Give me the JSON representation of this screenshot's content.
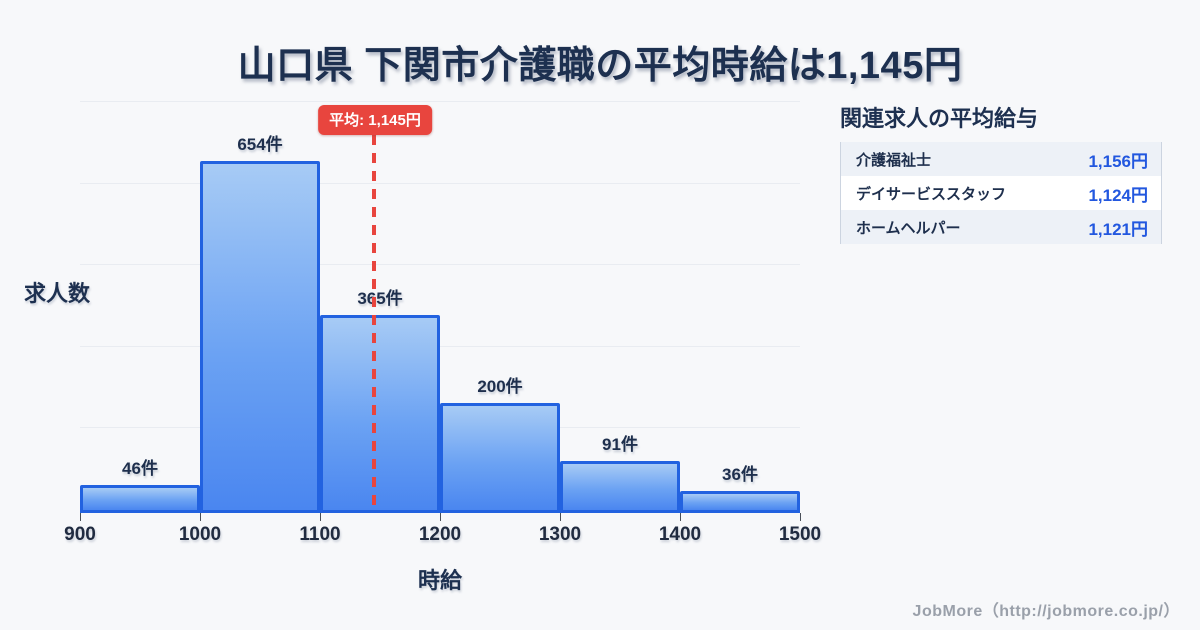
{
  "title": "山口県 下関市介護職の平均時給は1,145円",
  "chart_data": {
    "type": "bar",
    "subtype": "histogram",
    "title": "山口県 下関市介護職の平均時給は1,145円",
    "xlabel": "時給",
    "ylabel": "求人数",
    "bins": [
      900,
      1000,
      1100,
      1200,
      1300,
      1400,
      1500
    ],
    "categories": [
      "900-1000",
      "1000-1100",
      "1100-1200",
      "1200-1300",
      "1300-1400",
      "1400-1500"
    ],
    "values": [
      46,
      654,
      365,
      200,
      91,
      36
    ],
    "bar_labels": [
      "46件",
      "654件",
      "365件",
      "200件",
      "91件",
      "36件"
    ],
    "x_tick_labels": [
      "900",
      "1000",
      "1100",
      "1200",
      "1300",
      "1400",
      "1500"
    ],
    "mean_value": 1145,
    "mean_label": "平均: 1,145円",
    "xlim": [
      900,
      1500
    ],
    "ylim": [
      0,
      765
    ],
    "gridline_count": 5,
    "grid": true,
    "legend": "none",
    "colors": {
      "bar_fill_top": "#a7cbf5",
      "bar_fill_bottom": "#4a86f0",
      "bar_border": "#2262e0",
      "mean_line": "#e8453e",
      "label_text": "#1e2f4d",
      "background": "#f7f8fa"
    }
  },
  "side_panel": {
    "heading": "関連求人の平均給与",
    "rows": [
      {
        "label": "介護福祉士",
        "value": "1,156円"
      },
      {
        "label": "デイサービススタッフ",
        "value": "1,124円"
      },
      {
        "label": "ホームヘルパー",
        "value": "1,121円"
      }
    ],
    "value_color": "#2257df"
  },
  "footer": {
    "credit": "JobMore（http://jobmore.co.jp/）"
  }
}
